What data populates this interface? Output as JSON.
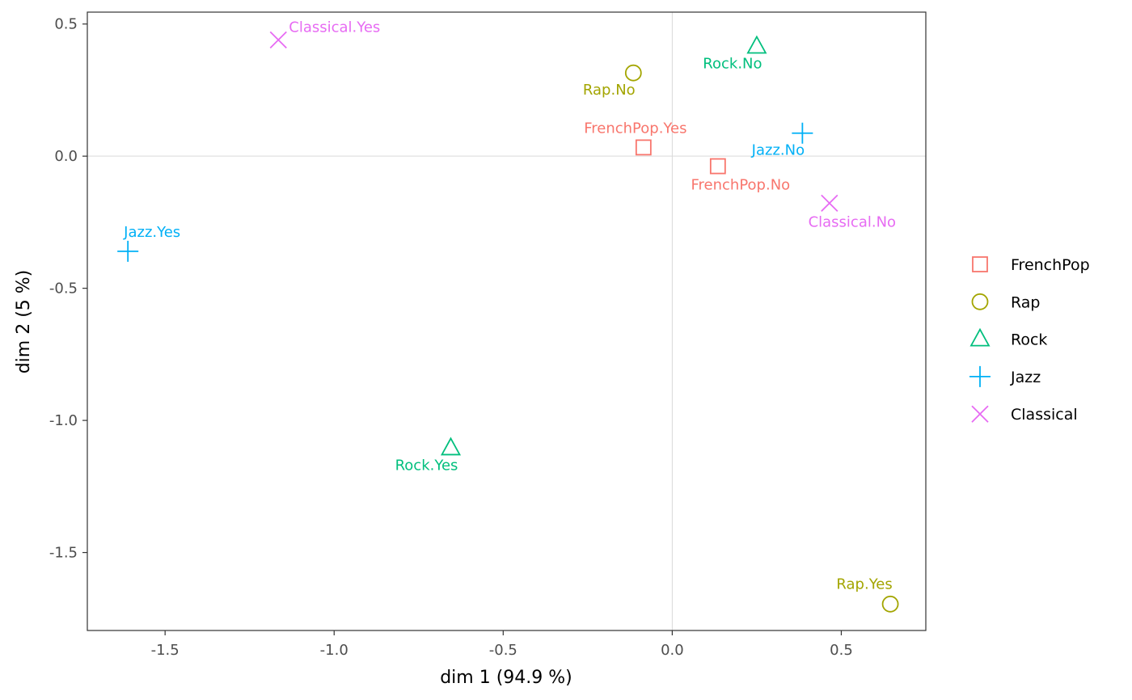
{
  "chart_data": {
    "type": "scatter",
    "xlabel": "dim 1 (94.9 %)",
    "ylabel": "dim 2 (5 %)",
    "xlim": [
      -1.73,
      0.75
    ],
    "ylim": [
      -1.795,
      0.545
    ],
    "x_ticks": [
      -1.5,
      -1.0,
      -0.5,
      0.0,
      0.5
    ],
    "x_tick_labels": [
      "-1.5",
      "-1.0",
      "-0.5",
      "0.0",
      "0.5"
    ],
    "y_ticks": [
      0.5,
      0.0,
      -0.5,
      -1.0,
      -1.5
    ],
    "y_tick_labels": [
      "0.5",
      "0.0",
      "-0.5",
      "-1.0",
      "-1.5"
    ],
    "reference_lines": {
      "x": 0,
      "y": 0
    },
    "grid": false,
    "legend_position": "right",
    "series": [
      {
        "name": "FrenchPop",
        "shape": "square",
        "color": "#F8766D",
        "points": [
          {
            "label": "FrenchPop.Yes",
            "x": -0.085,
            "y": 0.033,
            "label_pos": "above"
          },
          {
            "label": "FrenchPop.No",
            "x": 0.135,
            "y": -0.038,
            "label_pos": "below"
          }
        ]
      },
      {
        "name": "Rap",
        "shape": "circle",
        "color": "#A3A500",
        "points": [
          {
            "label": "Rap.No",
            "x": -0.115,
            "y": 0.315,
            "label_pos": "below-left"
          },
          {
            "label": "Rap.Yes",
            "x": 0.645,
            "y": -1.695,
            "label_pos": "above-left"
          }
        ]
      },
      {
        "name": "Rock",
        "shape": "triangle",
        "color": "#00BF7D",
        "points": [
          {
            "label": "Rock.No",
            "x": 0.25,
            "y": 0.415,
            "label_pos": "below-left"
          },
          {
            "label": "Rock.Yes",
            "x": -0.655,
            "y": -1.105,
            "label_pos": "below-left"
          }
        ]
      },
      {
        "name": "Jazz",
        "shape": "plus",
        "color": "#00B0F6",
        "points": [
          {
            "label": "Jazz.No",
            "x": 0.385,
            "y": 0.087,
            "label_pos": "below-left"
          },
          {
            "label": "Jazz.Yes",
            "x": -1.61,
            "y": -0.36,
            "label_pos": "above-right"
          }
        ]
      },
      {
        "name": "Classical",
        "shape": "cross",
        "color": "#E76BF3",
        "points": [
          {
            "label": "Classical.Yes",
            "x": -1.165,
            "y": 0.44,
            "label_pos": "above-right"
          },
          {
            "label": "Classical.No",
            "x": 0.465,
            "y": -0.178,
            "label_pos": "below"
          }
        ]
      }
    ]
  }
}
